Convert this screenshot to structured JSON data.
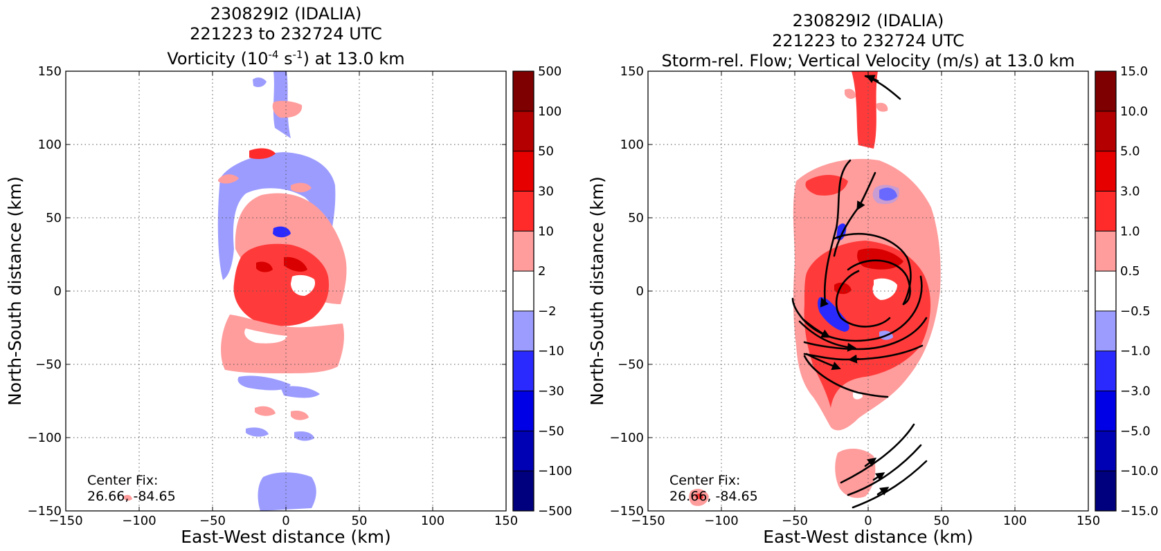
{
  "colors": {
    "cbar": [
      "#00007f",
      "#0000b4",
      "#0000e6",
      "#2a2aff",
      "#9c9cff",
      "#ffffff",
      "#ff9c9c",
      "#ff2a2a",
      "#e60000",
      "#b40000",
      "#7f0000"
    ],
    "negative_light": "#9c9cff",
    "negative_mid": "#2a2aff",
    "positive_light": "#ff9c9c",
    "positive_mid": "#ff3a3a",
    "positive_dark": "#d80000",
    "grid": "#555555"
  },
  "chart_data": [
    {
      "type": "heatmap",
      "title_lines": [
        "230829I2 (IDALIA)",
        "221223 to 232724 UTC"
      ],
      "title_line3_pre": "Vorticity (10",
      "title_line3_sup1": "-4",
      "title_line3_mid": " s",
      "title_line3_sup2": "-1",
      "title_line3_post": ") at 13.0 km",
      "xlabel": "East-West distance (km)",
      "ylabel": "North-South distance (km)",
      "xlim": [
        -150,
        150
      ],
      "ylim": [
        -150,
        150
      ],
      "xticks": [
        -150,
        -100,
        -50,
        0,
        50,
        100,
        150
      ],
      "yticks": [
        -150,
        -100,
        -50,
        0,
        50,
        100,
        150
      ],
      "xtick_labels": [
        "−150",
        "−100",
        "−50",
        "0",
        "50",
        "100",
        "150"
      ],
      "ytick_labels": [
        "−150",
        "−100",
        "−50",
        "0",
        "50",
        "100",
        "150"
      ],
      "grid": true,
      "colorbar": {
        "labels": [
          "500",
          "100",
          "50",
          "30",
          "10",
          "2",
          "−2",
          "−10",
          "−30",
          "−50",
          "−100",
          "−500"
        ]
      },
      "annotation": {
        "line1": "Center Fix:",
        "line2": "26.66, -84.65"
      }
    },
    {
      "type": "heatmap",
      "title_lines": [
        "230829I2 (IDALIA)",
        "221223 to 232724 UTC",
        "Storm-rel. Flow; Vertical Velocity (m/s) at 13.0 km"
      ],
      "xlabel": "East-West distance (km)",
      "ylabel": "North-South distance (km)",
      "xlim": [
        -150,
        150
      ],
      "ylim": [
        -150,
        150
      ],
      "xticks": [
        -150,
        -100,
        -50,
        0,
        50,
        100,
        150
      ],
      "yticks": [
        -150,
        -100,
        -50,
        0,
        50,
        100,
        150
      ],
      "xtick_labels": [
        "−150",
        "−100",
        "−50",
        "0",
        "50",
        "100",
        "150"
      ],
      "ytick_labels": [
        "−150",
        "−100",
        "−50",
        "0",
        "50",
        "100",
        "150"
      ],
      "grid": true,
      "colorbar": {
        "labels": [
          "15.0",
          "10.0",
          "5.0",
          "3.0",
          "1.0",
          "0.5",
          "−0.5",
          "−1.0",
          "−3.0",
          "−5.0",
          "−10.0",
          "−15.0"
        ]
      },
      "annotation": {
        "line1": "Center Fix:",
        "line2": "26.66, -84.65"
      }
    }
  ]
}
